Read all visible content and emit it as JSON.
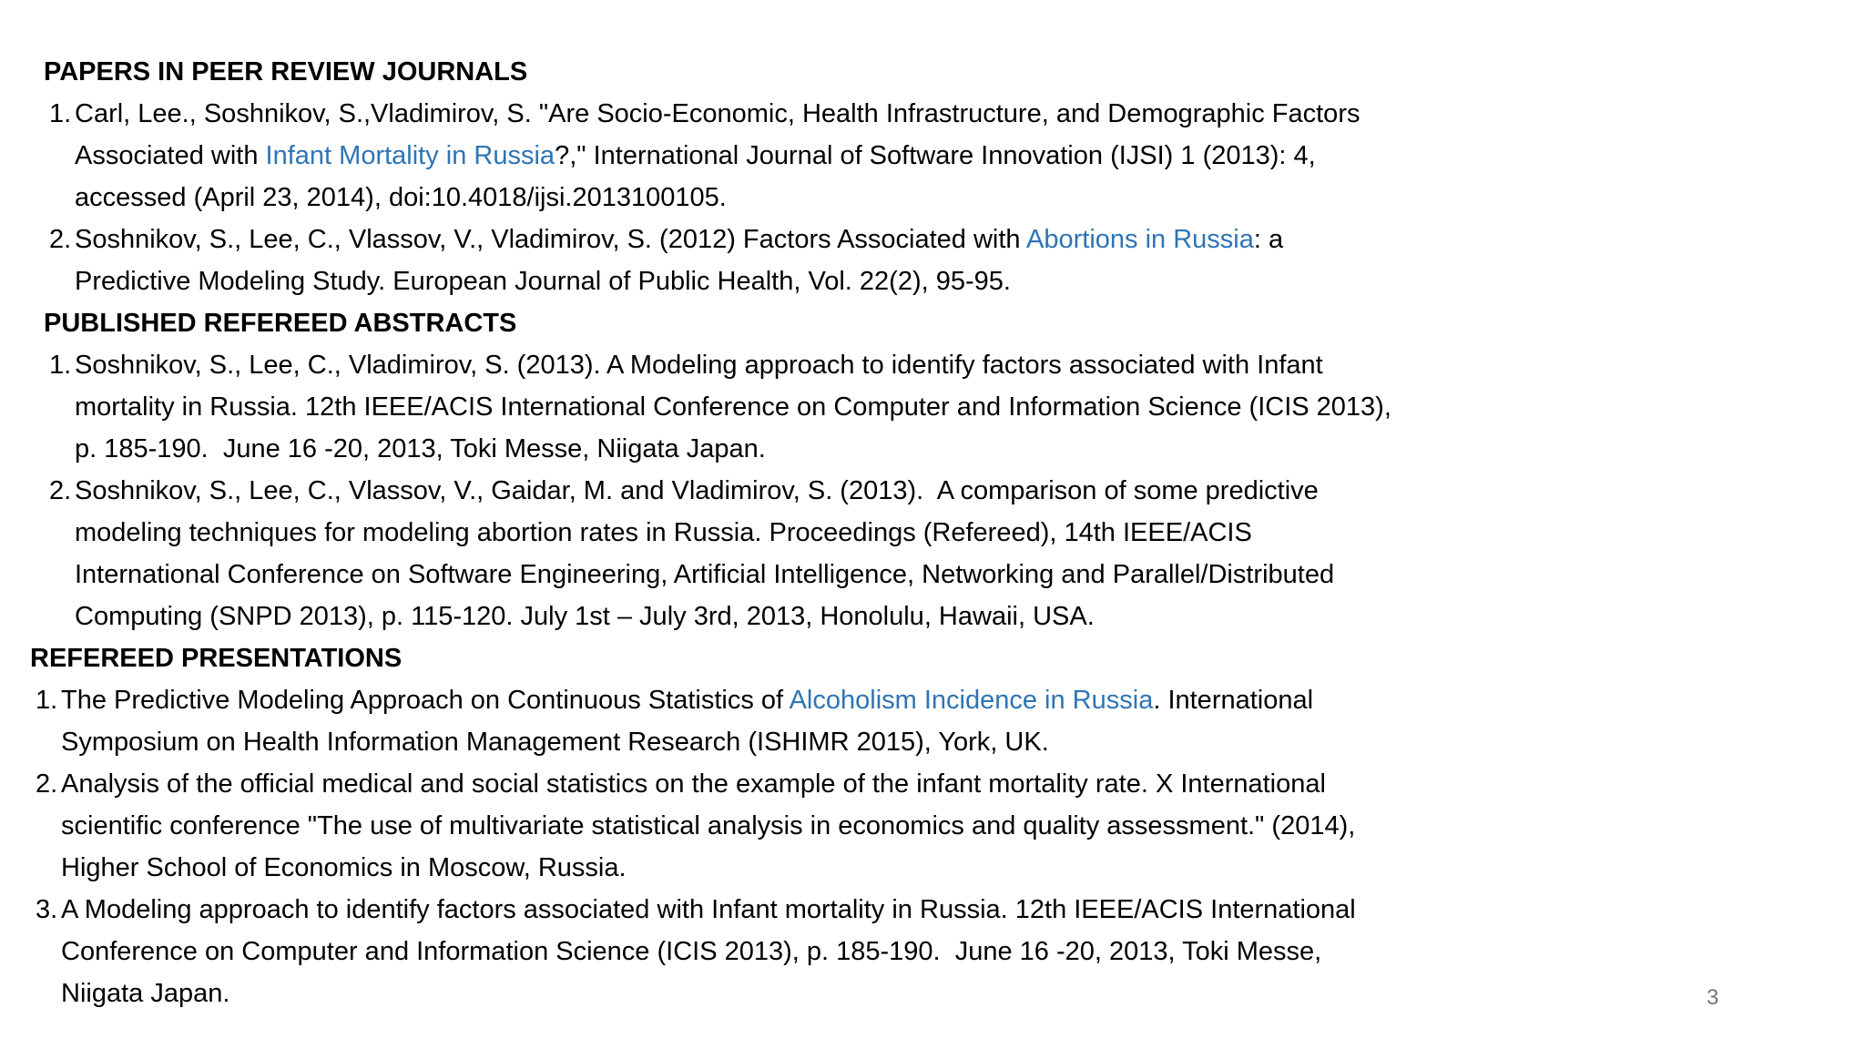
{
  "page": {
    "background": "#ffffff",
    "text_color": "#000000",
    "link_color": "#2E74B5",
    "page_number_color": "#777777",
    "page_number": "3"
  },
  "sections": [
    {
      "heading": "PAPERS IN PEER REVIEW JOURNALS",
      "indent": "inner",
      "items": [
        {
          "number": "1.",
          "segments": [
            {
              "text": "Carl, Lee., Soshnikov, S.,Vladimirov, S. \"Are Socio-Economic, Health Infrastructure, and Demographic Factors Associated with ",
              "link": false
            },
            {
              "text": "Infant Mortality in Russia",
              "link": true
            },
            {
              "text": "?,\" International Journal of Software Innovation (IJSI) 1 (2013): 4, accessed (April 23, 2014), doi:10.4018/ijsi.2013100105.",
              "link": false
            }
          ]
        },
        {
          "number": "2.",
          "segments": [
            {
              "text": "Soshnikov, S., Lee, C., Vlassov, V., Vladimirov, S. (2012) Factors Associated with ",
              "link": false
            },
            {
              "text": "Abortions in Russia",
              "link": true
            },
            {
              "text": ": a Predictive Modeling Study. European Journal of Public Health, Vol. 22(2), 95-95.",
              "link": false
            }
          ]
        }
      ]
    },
    {
      "heading": "PUBLISHED REFEREED ABSTRACTS",
      "indent": "inner",
      "items": [
        {
          "number": "1.",
          "segments": [
            {
              "text": "Soshnikov, S., Lee, C., Vladimirov, S. (2013). A Modeling approach to identify factors associated with Infant mortality in Russia. 12th IEEE/ACIS International Conference on Computer and Information Science (ICIS 2013), p. 185-190.  June 16 -20, 2013, Toki Messe, Niigata Japan.",
              "link": false
            }
          ]
        },
        {
          "number": "2.",
          "segments": [
            {
              "text": "Soshnikov, S., Lee, C., Vlassov, V., Gaidar, M. and Vladimirov, S. (2013).  A comparison of some predictive modeling techniques for modeling abortion rates in Russia. Proceedings (Refereed), 14th IEEE/ACIS International Conference on Software Engineering, Artificial Intelligence, Networking and Parallel/Distributed Computing (SNPD 2013), p. 115-120. July 1st – July 3rd, 2013, Honolulu, Hawaii, USA.",
              "link": false
            }
          ]
        }
      ]
    },
    {
      "heading": "REFEREED PRESENTATIONS",
      "indent": "outer",
      "items": [
        {
          "number": "1.",
          "segments": [
            {
              "text": "The Predictive Modeling Approach on Continuous Statistics of ",
              "link": false
            },
            {
              "text": "Alcoholism Incidence in Russia",
              "link": true
            },
            {
              "text": ". International Symposium on Health Information Management Research (ISHIMR 2015), York, UK.",
              "link": false
            }
          ]
        },
        {
          "number": "2.",
          "segments": [
            {
              "text": "Analysis of the official medical and social statistics on the example of the infant mortality rate. X International scientific conference \"The use of multivariate statistical analysis in economics and quality assessment.\" (2014), Higher School of Economics in Moscow, Russia.",
              "link": false
            }
          ]
        },
        {
          "number": "3.",
          "segments": [
            {
              "text": "A Modeling approach to identify factors associated with Infant mortality in Russia. 12th IEEE/ACIS International Conference on Computer and Information Science (ICIS 2013), p. 185-190.  June 16 -20, 2013, Toki Messe, Niigata Japan.",
              "link": false
            }
          ]
        }
      ]
    }
  ]
}
